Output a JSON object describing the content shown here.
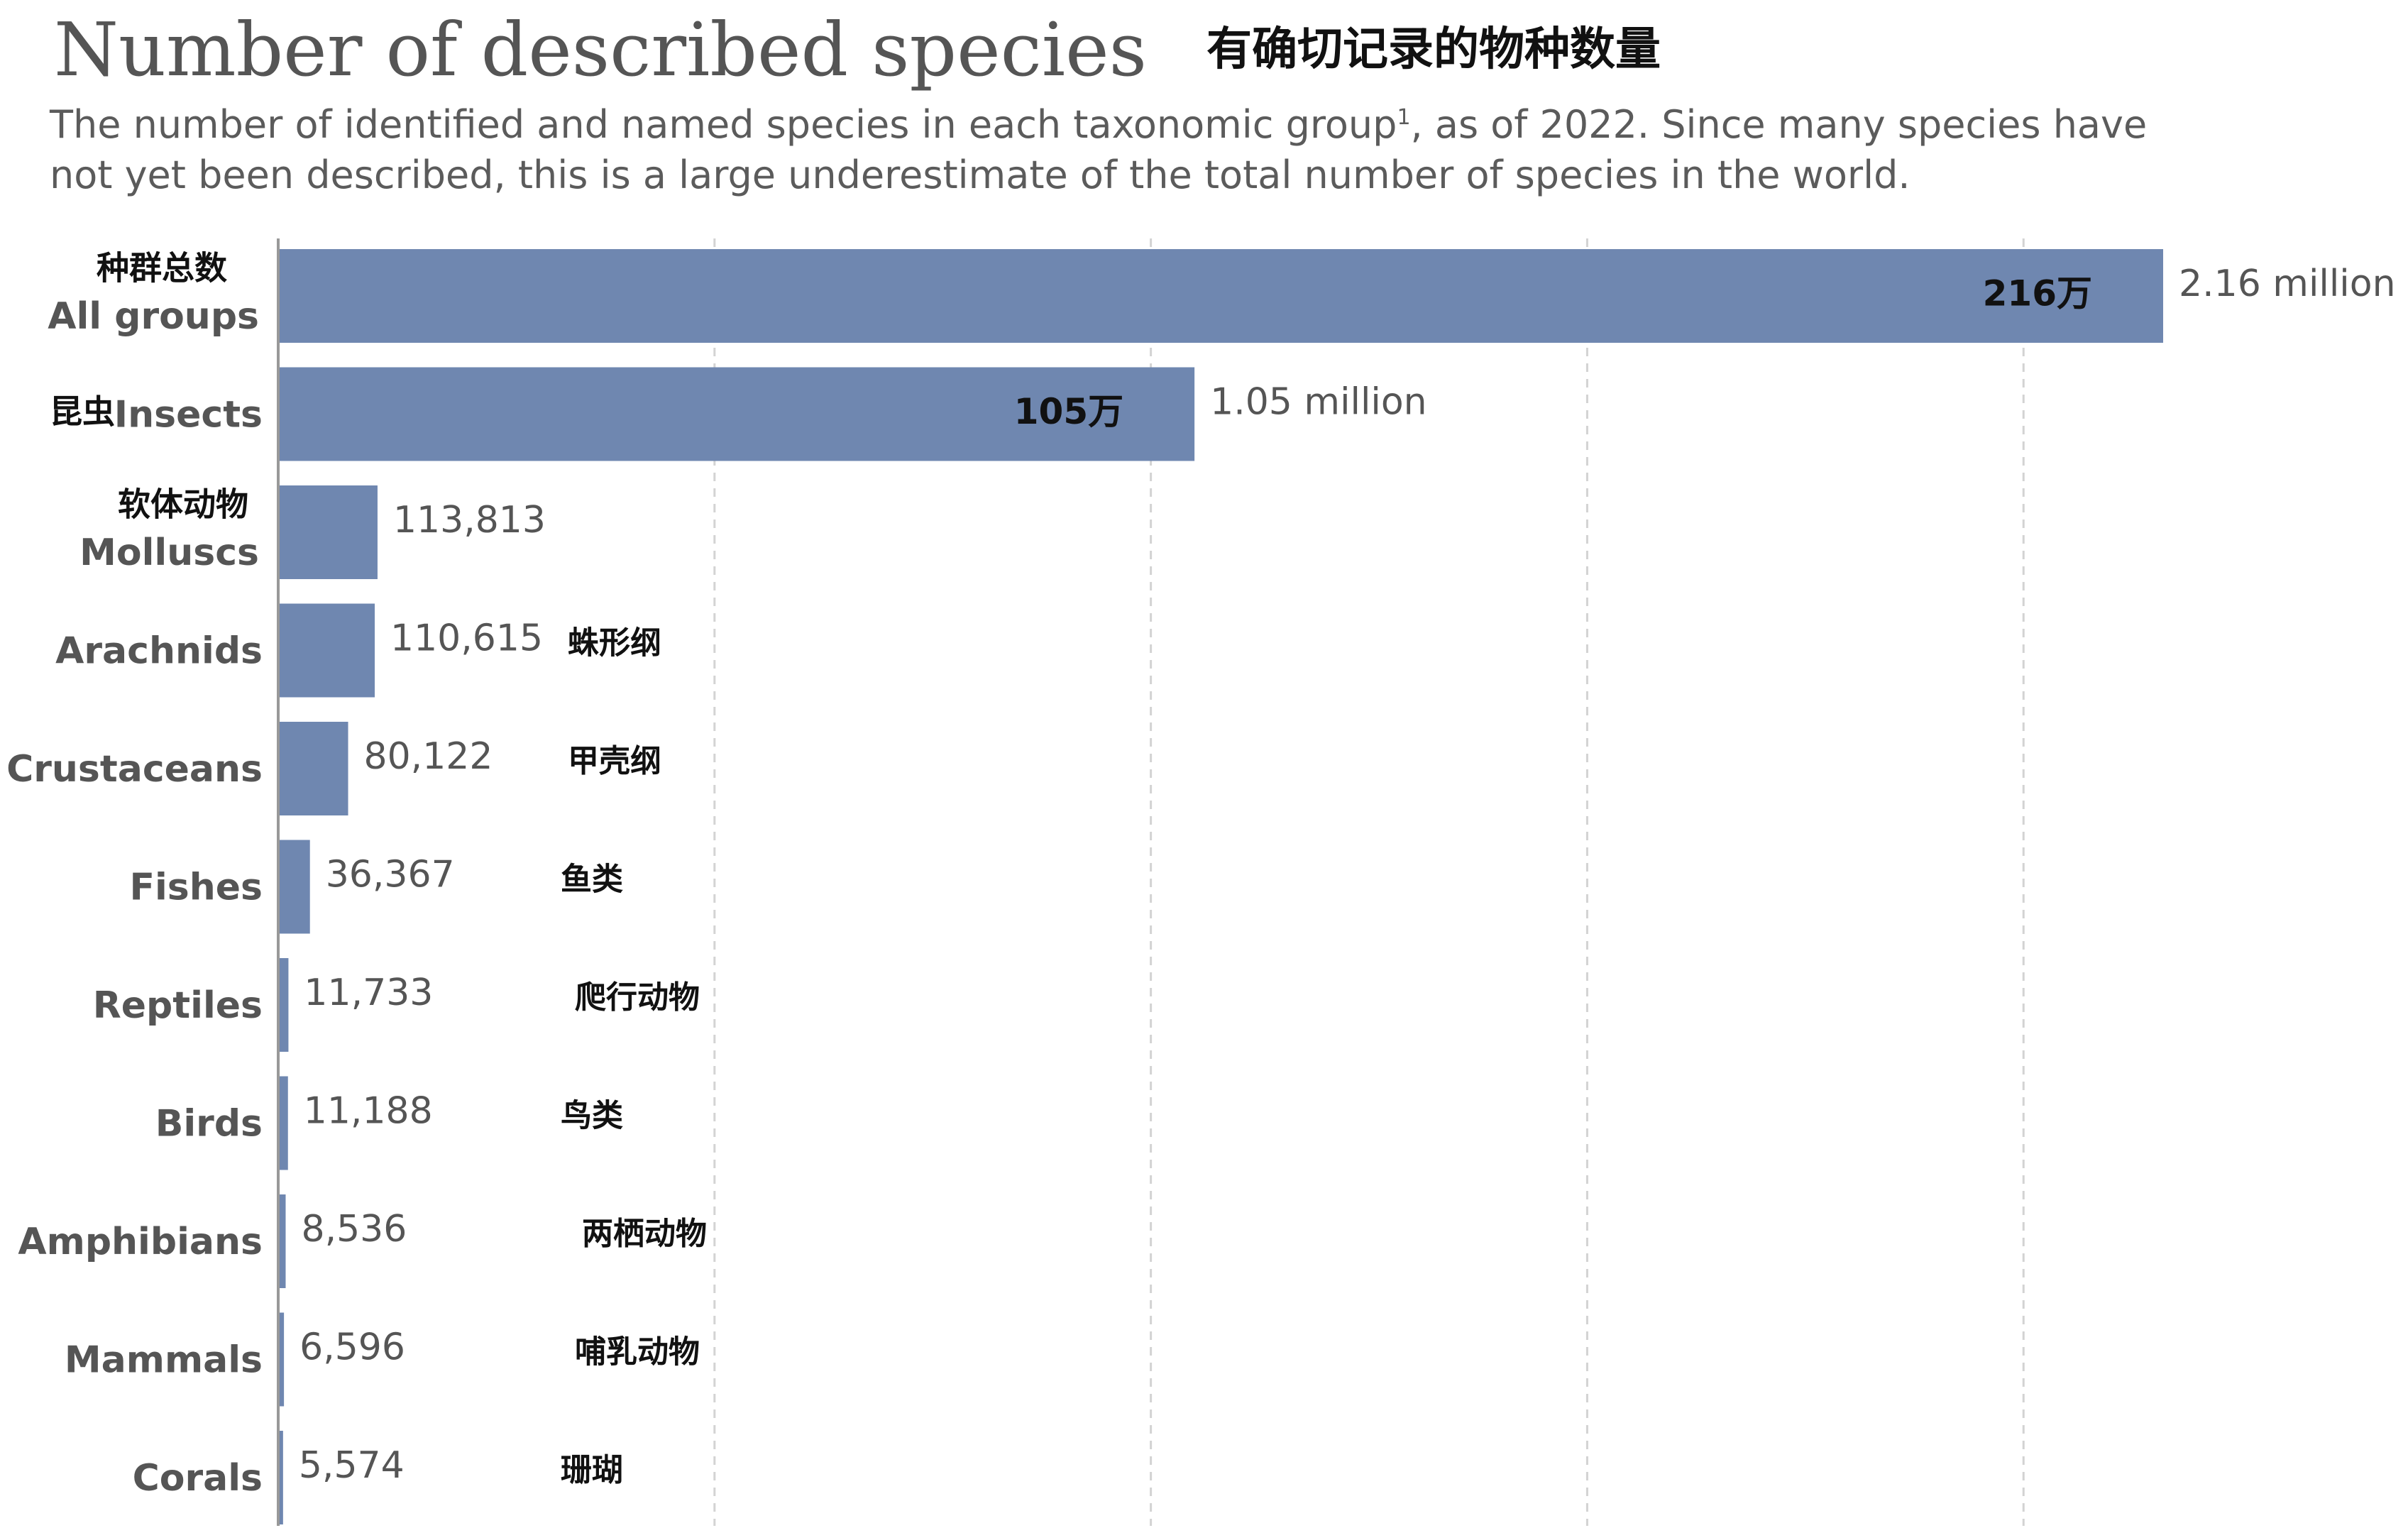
{
  "header": {
    "title": "Number of described species",
    "title_cn": "有确切记录的物种数量",
    "subtitle_part1": "The number of identified and named species in each taxonomic group",
    "subtitle_footnote": "1",
    "subtitle_part2": ", as of 2022. Since many species have not yet been described, this is a large underestimate of the total number of species in the world."
  },
  "colors": {
    "bar": "#6f87b0",
    "axis": "#999999",
    "grid": "#d3d3d3",
    "label": "#555555",
    "value_label": "#555555",
    "cn_label": "#111111"
  },
  "chart_data": {
    "type": "bar",
    "orientation": "horizontal",
    "categories": [
      "All groups",
      "Insects",
      "Molluscs",
      "Arachnids",
      "Crustaceans",
      "Fishes",
      "Reptiles",
      "Birds",
      "Amphibians",
      "Mammals",
      "Corals"
    ],
    "categories_cn": [
      "种群总数",
      "昆虫",
      "软体动物",
      "蛛形纲",
      "甲壳纲",
      "鱼类",
      "爬行动物",
      "鸟类",
      "两栖动物",
      "哺乳动物",
      "珊瑚"
    ],
    "values": [
      2160000,
      1050000,
      113813,
      110615,
      80122,
      36367,
      11733,
      11188,
      8536,
      6596,
      5574
    ],
    "value_labels": [
      "2.16 million",
      "1.05 million",
      "113,813",
      "110,615",
      "80,122",
      "36,367",
      "11,733",
      "11,188",
      "8,536",
      "6,596",
      "5,574"
    ],
    "inside_labels_cn": [
      "216万",
      "105万",
      "",
      "",
      "",
      "",
      "",
      "",
      "",
      "",
      ""
    ],
    "xlim": [
      0,
      2160000
    ],
    "gridlines": [
      500000,
      1000000,
      1500000,
      2000000
    ],
    "grid": true,
    "legend": false
  }
}
